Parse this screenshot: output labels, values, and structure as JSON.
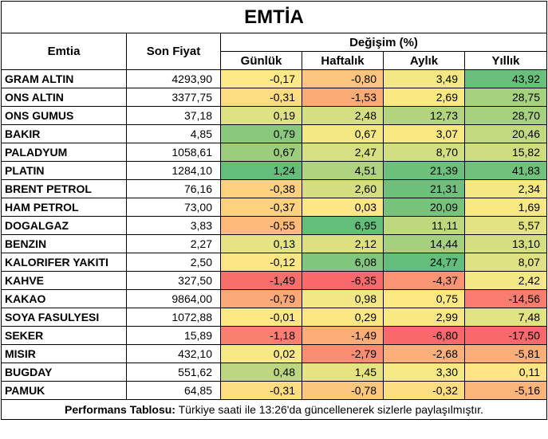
{
  "title": "EMTİA",
  "headers": {
    "emtia": "Emtia",
    "son_fiyat": "Son Fiyat",
    "degisim": "Değişim (%)",
    "gunluk": "Günlük",
    "haftalik": "Haftalık",
    "aylik": "Aylık",
    "yillik": "Yıllık"
  },
  "rows": [
    {
      "name": "GRAM ALTIN",
      "price": "4293,90",
      "d": "-0,17",
      "w": "-0,80",
      "m": "3,49",
      "y": "43,92",
      "cd": "#fde987",
      "cw": "#fcc57d",
      "cm": "#f4e885",
      "cy": "#69bf7b"
    },
    {
      "name": "ONS ALTIN",
      "price": "3377,75",
      "d": "-0,31",
      "w": "-1,53",
      "m": "2,69",
      "y": "28,75",
      "cd": "#fedc82",
      "cw": "#fbab76",
      "cm": "#fae983",
      "cy": "#a6d17f"
    },
    {
      "name": "ONS GUMUS",
      "price": "37,18",
      "d": "0,19",
      "w": "2,48",
      "m": "12,73",
      "y": "28,70",
      "cd": "#dfe282",
      "cw": "#d5df81",
      "cm": "#b2d47f",
      "cy": "#a6d17f"
    },
    {
      "name": "BAKIR",
      "price": "4,85",
      "d": "0,79",
      "w": "0,67",
      "m": "3,07",
      "y": "20,46",
      "cd": "#8ac97d",
      "cw": "#f4e884",
      "cm": "#f7e884",
      "cy": "#c2d980"
    },
    {
      "name": "PALADYUM",
      "price": "1058,61",
      "d": "0,67",
      "w": "2,47",
      "m": "8,70",
      "y": "15,82",
      "cd": "#9ccd7e",
      "cw": "#d6df81",
      "cm": "#d2de81",
      "cy": "#cfdc81"
    },
    {
      "name": "PLATIN",
      "price": "1284,10",
      "d": "1,24",
      "w": "4,51",
      "m": "21,39",
      "y": "41,83",
      "cd": "#63be7b",
      "cw": "#afd27f",
      "cm": "#6cc07c",
      "cy": "#6fc17c"
    },
    {
      "name": "BRENT PETROL",
      "price": "76,16",
      "d": "-0,38",
      "w": "2,60",
      "m": "21,31",
      "y": "2,34",
      "cd": "#fed17f",
      "cw": "#d4de81",
      "cm": "#6cc07c",
      "cy": "#f4e884"
    },
    {
      "name": "HAM PETROL",
      "price": "73,00",
      "d": "-0,37",
      "w": "0,03",
      "m": "20,09",
      "y": "1,69",
      "cd": "#fed27f",
      "cw": "#fde685",
      "cm": "#77c37c",
      "cy": "#f7e884"
    },
    {
      "name": "DOGALGAZ",
      "price": "3,83",
      "d": "-0,55",
      "w": "6,95",
      "m": "11,11",
      "y": "5,57",
      "cd": "#fdbb7b",
      "cw": "#63be7b",
      "cm": "#bed880",
      "cy": "#e4e383"
    },
    {
      "name": "BENZIN",
      "price": "2,27",
      "d": "0,13",
      "w": "2,12",
      "m": "14,44",
      "y": "13,10",
      "cd": "#e5e383",
      "cw": "#dce081",
      "cm": "#a5d17f",
      "cy": "#d5df81"
    },
    {
      "name": "KALORIFER YAKITI",
      "price": "2,50",
      "d": "-0,12",
      "w": "6,08",
      "m": "24,77",
      "y": "8,07",
      "cd": "#fde685",
      "cw": "#80c67c",
      "cm": "#63be7b",
      "cy": "#dfe282"
    },
    {
      "name": "KAHVE",
      "price": "327,50",
      "d": "-1,49",
      "w": "-6,35",
      "m": "-4,37",
      "y": "2,42",
      "cd": "#f86e6b",
      "cw": "#f8696b",
      "cm": "#fb9473",
      "cy": "#f3e884"
    },
    {
      "name": "KAKAO",
      "price": "9864,00",
      "d": "-0,79",
      "w": "0,98",
      "m": "0,75",
      "y": "-14,56",
      "cd": "#fca977",
      "cw": "#f2e784",
      "cm": "#fde885",
      "cy": "#f97c6e"
    },
    {
      "name": "SOYA FASULYESI",
      "price": "1072,88",
      "d": "-0,01",
      "w": "0,29",
      "m": "2,99",
      "y": "7,48",
      "cd": "#fde885",
      "cw": "#fbe885",
      "cm": "#f8e884",
      "cy": "#e1e282"
    },
    {
      "name": "SEKER",
      "price": "15,89",
      "d": "-1,18",
      "w": "-1,49",
      "m": "-6,80",
      "y": "-17,50",
      "cd": "#f97f6f",
      "cw": "#fcad77",
      "cm": "#f8696b",
      "cy": "#f8696b"
    },
    {
      "name": "MISIR",
      "price": "432,10",
      "d": "0,02",
      "w": "-2,79",
      "m": "-2,68",
      "y": "-5,81",
      "cd": "#f6e884",
      "cw": "#fa8d71",
      "cm": "#fcb079",
      "cy": "#fbae78"
    },
    {
      "name": "BUGDAY",
      "price": "551,62",
      "d": "0,48",
      "w": "1,45",
      "m": "3,30",
      "y": "0,11",
      "cd": "#bcd780",
      "cw": "#e6e383",
      "cm": "#f6e884",
      "cy": "#fde585"
    },
    {
      "name": "PAMUK",
      "price": "64,85",
      "d": "-0,31",
      "w": "-0,78",
      "m": "-0,32",
      "y": "-5,16",
      "cd": "#fedc82",
      "cw": "#fdc67d",
      "cm": "#fedd82",
      "cy": "#fbb479"
    }
  ],
  "footer": {
    "label": "Performans Tablosu:",
    "text": " Türkiye saati ile 13:26'da güncellenerek sizlerle paylaşılmıştır."
  }
}
